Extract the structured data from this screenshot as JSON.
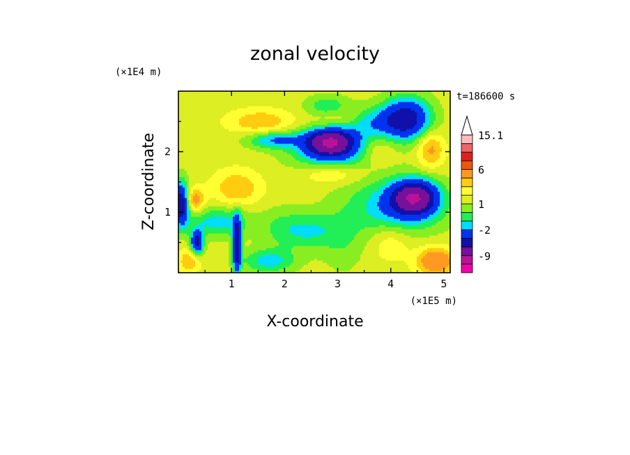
{
  "chart_data": {
    "type": "heatmap",
    "title": "zonal velocity",
    "xlabel": "X-coordinate",
    "ylabel": "Z-coordinate",
    "x_unit": "(×1E5 m)",
    "y_unit": "(×1E4 m)",
    "time_label": "t=186600 s",
    "x_ticks": [
      "1",
      "2",
      "3",
      "4",
      "5"
    ],
    "y_ticks": [
      "1",
      "2"
    ],
    "xlim": [
      0,
      5.12
    ],
    "ylim": [
      0,
      3.0
    ],
    "grid": false,
    "colorbar": {
      "placement": "right",
      "labels": [
        "15.1",
        "6",
        "1",
        "-2",
        "-9"
      ],
      "levels": [
        -15,
        -12,
        -9,
        -6,
        -4,
        -2,
        -1,
        0,
        1,
        2,
        3,
        4,
        6,
        9,
        12,
        15.1
      ],
      "colors": [
        "#ee00aa",
        "#bb1199",
        "#771199",
        "#1111aa",
        "#0033ee",
        "#00ddff",
        "#22ee55",
        "#88ee22",
        "#ddee22",
        "#ffff33",
        "#ffcc11",
        "#ff9922",
        "#ee5511",
        "#dd2222",
        "#ee6666",
        "#ffbbbb"
      ]
    },
    "field": {
      "background_value": 1.5,
      "features": [
        {
          "x": 2.85,
          "z": 2.17,
          "value": -7,
          "rx": 0.45,
          "rz": 0.22
        },
        {
          "x": 2.92,
          "z": 2.0,
          "value": -2,
          "rx": 0.8,
          "rz": 0.38
        },
        {
          "x": 4.45,
          "z": 1.25,
          "value": -7,
          "rx": 0.42,
          "rz": 0.28
        },
        {
          "x": 4.1,
          "z": 1.1,
          "value": -2,
          "rx": 0.9,
          "rz": 0.45
        },
        {
          "x": 4.3,
          "z": 2.55,
          "value": -5,
          "rx": 0.45,
          "rz": 0.35
        },
        {
          "x": 3.6,
          "z": 2.5,
          "value": -1.5,
          "rx": 0.6,
          "rz": 0.25
        },
        {
          "x": 1.1,
          "z": 0.45,
          "value": -6,
          "rx": 0.08,
          "rz": 0.45
        },
        {
          "x": 0.05,
          "z": 1.15,
          "value": -6,
          "rx": 0.15,
          "rz": 0.35
        },
        {
          "x": 0.35,
          "z": 0.5,
          "value": -5,
          "rx": 0.12,
          "rz": 0.2
        },
        {
          "x": 1.8,
          "z": 2.2,
          "value": -2,
          "rx": 0.5,
          "rz": 0.14
        },
        {
          "x": 0.75,
          "z": 0.85,
          "value": -1.5,
          "rx": 0.6,
          "rz": 0.25
        },
        {
          "x": 1.7,
          "z": 0.2,
          "value": -1.5,
          "rx": 0.5,
          "rz": 0.2
        },
        {
          "x": 2.45,
          "z": 0.7,
          "value": -1,
          "rx": 0.55,
          "rz": 0.3
        },
        {
          "x": 2.8,
          "z": 2.75,
          "value": -1,
          "rx": 0.4,
          "rz": 0.18
        },
        {
          "x": 0.3,
          "z": 1.2,
          "value": 5,
          "rx": 0.18,
          "rz": 0.2
        },
        {
          "x": 1.55,
          "z": 2.5,
          "value": 4,
          "rx": 0.6,
          "rz": 0.2
        },
        {
          "x": 1.1,
          "z": 1.4,
          "value": 4,
          "rx": 0.45,
          "rz": 0.3
        },
        {
          "x": 2.9,
          "z": 1.65,
          "value": 4,
          "rx": 0.6,
          "rz": 0.18
        },
        {
          "x": 3.05,
          "z": 2.55,
          "value": 3.5,
          "rx": 0.5,
          "rz": 0.2
        },
        {
          "x": 4.75,
          "z": 2.05,
          "value": 4.5,
          "rx": 0.25,
          "rz": 0.3
        },
        {
          "x": 4.85,
          "z": 0.2,
          "value": 6,
          "rx": 0.35,
          "rz": 0.22
        },
        {
          "x": 0.2,
          "z": 0.2,
          "value": 4,
          "rx": 0.2,
          "rz": 0.2
        },
        {
          "x": 4.0,
          "z": 0.5,
          "value": 3,
          "rx": 0.35,
          "rz": 0.3
        },
        {
          "x": 3.75,
          "z": 2.0,
          "value": 3,
          "rx": 0.35,
          "rz": 0.25
        },
        {
          "x": 3.1,
          "z": 0.5,
          "value": 0.3,
          "rx": 0.4,
          "rz": 0.5
        },
        {
          "x": 1.9,
          "z": 0.75,
          "value": 0.4,
          "rx": 0.4,
          "rz": 0.35
        }
      ]
    }
  }
}
